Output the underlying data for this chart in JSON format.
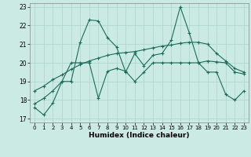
{
  "title": "",
  "xlabel": "Humidex (Indice chaleur)",
  "xlim": [
    -0.5,
    23.5
  ],
  "ylim": [
    16.8,
    23.2
  ],
  "xticks": [
    0,
    1,
    2,
    3,
    4,
    5,
    6,
    7,
    8,
    9,
    10,
    11,
    12,
    13,
    14,
    15,
    16,
    17,
    18,
    19,
    20,
    21,
    22,
    23
  ],
  "yticks": [
    17,
    18,
    19,
    20,
    21,
    22,
    23
  ],
  "bg_color": "#cceae4",
  "line_color": "#1a6b5a",
  "grid_color": "#aad5cc",
  "series": [
    [
      17.6,
      17.2,
      17.85,
      19.0,
      19.0,
      21.1,
      22.3,
      22.25,
      21.35,
      20.85,
      19.5,
      20.5,
      19.85,
      20.4,
      20.5,
      21.2,
      23.0,
      21.6,
      20.0,
      20.1,
      20.05,
      20.0,
      19.5,
      19.4
    ],
    [
      17.8,
      18.1,
      18.5,
      19.0,
      20.0,
      20.0,
      20.0,
      18.1,
      19.55,
      19.7,
      19.55,
      19.0,
      19.5,
      20.0,
      20.0,
      20.0,
      20.0,
      20.0,
      20.0,
      19.5,
      19.5,
      18.3,
      18.0,
      18.5
    ],
    [
      18.5,
      18.75,
      19.1,
      19.35,
      19.65,
      19.9,
      20.1,
      20.25,
      20.4,
      20.5,
      20.55,
      20.6,
      20.7,
      20.8,
      20.9,
      20.95,
      21.05,
      21.1,
      21.1,
      21.0,
      20.5,
      20.1,
      19.7,
      19.5
    ]
  ]
}
